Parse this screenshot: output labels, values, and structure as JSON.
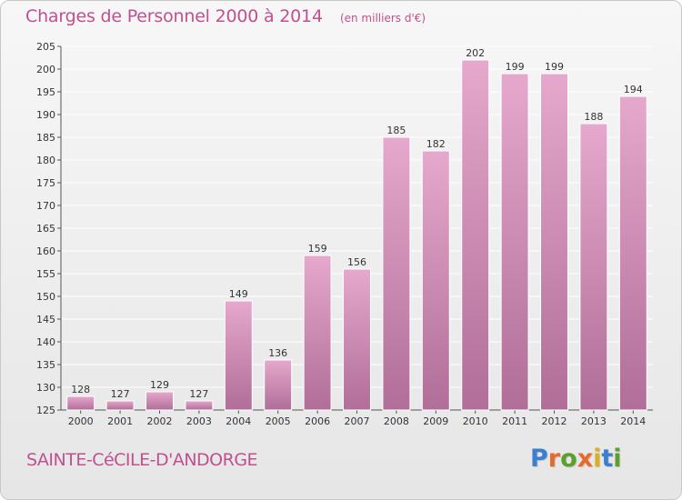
{
  "header": {
    "title": "Charges de Personnel 2000 à 2014",
    "subtitle": "(en milliers d'€)"
  },
  "footer": {
    "commune": "SAINTE-CéCILE-D'ANDORGE",
    "logo_text": "Proxiti",
    "logo_colors": [
      "#3b7fd1",
      "#e8692c",
      "#5aa02c",
      "#e8692c",
      "#d8b020",
      "#3b7fd1",
      "#5aa02c"
    ]
  },
  "colors": {
    "bar_top": "#e6a8cc",
    "bar_bottom": "#b06e98",
    "grid": "#ffffff",
    "text": "#333333",
    "accent": "#c05090"
  },
  "chart_data": {
    "type": "bar",
    "categories": [
      "2000",
      "2001",
      "2002",
      "2003",
      "2004",
      "2005",
      "2006",
      "2007",
      "2008",
      "2009",
      "2010",
      "2011",
      "2012",
      "2013",
      "2014"
    ],
    "values": [
      128,
      127,
      129,
      127,
      149,
      136,
      159,
      156,
      185,
      182,
      202,
      199,
      199,
      188,
      194
    ],
    "data_labels": [
      "128",
      "127",
      "129",
      "127",
      "149",
      "136",
      "159",
      "156",
      "185",
      "182",
      "202",
      "199",
      "199",
      "188",
      "194"
    ],
    "title": "Charges de Personnel 2000 à 2014",
    "subtitle": "(en milliers d'€)",
    "xlabel": "",
    "ylabel": "",
    "ylim": [
      125,
      205
    ],
    "yticks": [
      125,
      130,
      135,
      140,
      145,
      150,
      155,
      160,
      165,
      170,
      175,
      180,
      185,
      190,
      195,
      200,
      205
    ],
    "ytick_labels": [
      "125",
      "130",
      "135",
      "140",
      "145",
      "150",
      "155",
      "160",
      "165",
      "170",
      "175",
      "180",
      "185",
      "190",
      "195",
      "200",
      "205"
    ],
    "grid": true,
    "legend": "none"
  }
}
